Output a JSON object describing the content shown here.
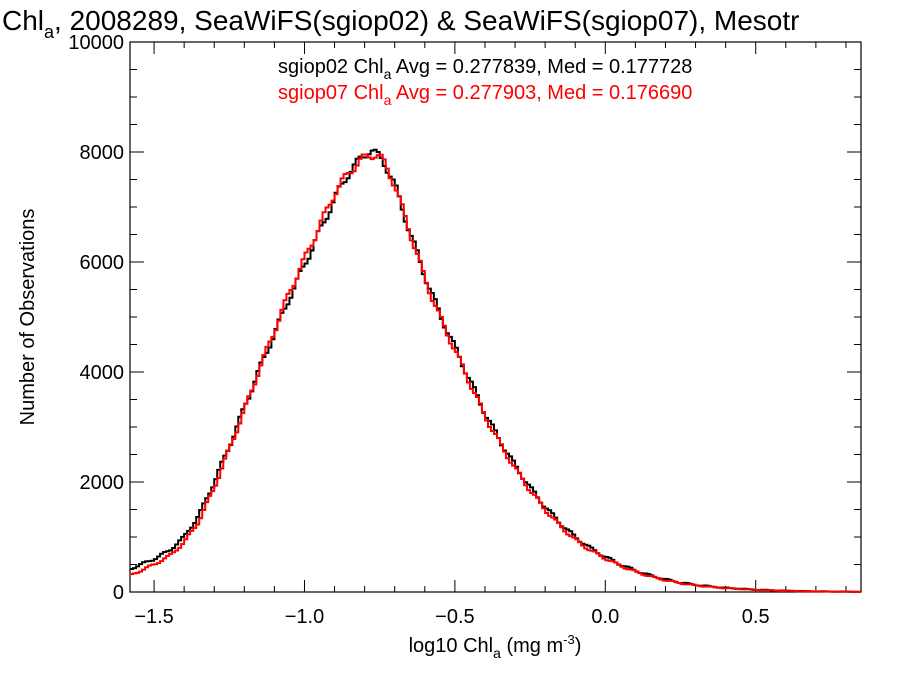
{
  "chart_data": {
    "type": "line",
    "title_main": "Chl",
    "title_sub": "a",
    "title_rest": ", 2008289, SeaWiFS(sgiop02) & SeaWiFS(sgiop07), Mesotr",
    "xlabel_pre": "log10 Chl",
    "xlabel_sub": "a",
    "xlabel_unit": " (mg m",
    "xlabel_sup": "-3",
    "xlabel_close": ")",
    "ylabel": "Number of Observations",
    "xlim": [
      -1.58,
      0.85
    ],
    "ylim": [
      0,
      10000
    ],
    "x_ticks": [
      -1.5,
      -1.0,
      -0.5,
      0.0,
      0.5
    ],
    "x_tick_labels": [
      "−1.5",
      "−1.0",
      "−0.5",
      "0.0",
      "0.5"
    ],
    "y_ticks": [
      0,
      2000,
      4000,
      6000,
      8000,
      10000
    ],
    "y_tick_labels": [
      "0",
      "2000",
      "4000",
      "6000",
      "8000",
      "10000"
    ],
    "grid": false,
    "legend_position": "top-right",
    "bin_width": 0.01,
    "series": [
      {
        "name_pre": "sgiop02 Chl",
        "name_sub": "a",
        "name_post": " Avg = 0.277839, Med = 0.177728",
        "color": "#000000",
        "x": [
          -1.58,
          -1.5,
          -1.45,
          -1.4,
          -1.35,
          -1.3,
          -1.25,
          -1.2,
          -1.15,
          -1.1,
          -1.05,
          -1.0,
          -0.95,
          -0.9,
          -0.85,
          -0.8,
          -0.78,
          -0.76,
          -0.74,
          -0.72,
          -0.7,
          -0.65,
          -0.6,
          -0.55,
          -0.5,
          -0.45,
          -0.4,
          -0.35,
          -0.3,
          -0.25,
          -0.2,
          -0.15,
          -0.1,
          -0.05,
          0.0,
          0.05,
          0.1,
          0.15,
          0.2,
          0.25,
          0.3,
          0.35,
          0.4,
          0.5,
          0.6,
          0.7,
          0.8,
          0.85
        ],
        "y": [
          420,
          600,
          750,
          1000,
          1400,
          2000,
          2650,
          3350,
          4050,
          4700,
          5350,
          5950,
          6550,
          7150,
          7650,
          7950,
          8050,
          7950,
          7850,
          7650,
          7400,
          6550,
          5750,
          5050,
          4450,
          3850,
          3250,
          2750,
          2300,
          1900,
          1550,
          1250,
          1000,
          800,
          640,
          500,
          390,
          300,
          230,
          170,
          130,
          100,
          75,
          42,
          22,
          12,
          6,
          4
        ]
      },
      {
        "name_pre": "sgiop07 Chl",
        "name_sub": "a",
        "name_post": " Avg = 0.277903, Med = 0.176690",
        "color": "#ff0000",
        "x": [
          -1.58,
          -1.5,
          -1.45,
          -1.4,
          -1.35,
          -1.3,
          -1.25,
          -1.2,
          -1.15,
          -1.1,
          -1.05,
          -1.0,
          -0.95,
          -0.9,
          -0.85,
          -0.8,
          -0.78,
          -0.76,
          -0.74,
          -0.72,
          -0.7,
          -0.65,
          -0.6,
          -0.55,
          -0.5,
          -0.45,
          -0.4,
          -0.35,
          -0.3,
          -0.25,
          -0.2,
          -0.15,
          -0.1,
          -0.05,
          0.0,
          0.05,
          0.1,
          0.15,
          0.2,
          0.25,
          0.3,
          0.35,
          0.4,
          0.5,
          0.6,
          0.7,
          0.8,
          0.85
        ],
        "y": [
          300,
          500,
          650,
          900,
          1300,
          1900,
          2600,
          3300,
          4050,
          4750,
          5450,
          6050,
          6650,
          7250,
          7650,
          7900,
          7950,
          7950,
          7850,
          7650,
          7400,
          6550,
          5700,
          5000,
          4400,
          3800,
          3200,
          2700,
          2250,
          1850,
          1500,
          1200,
          950,
          760,
          610,
          480,
          370,
          285,
          215,
          160,
          120,
          95,
          70,
          40,
          20,
          10,
          5,
          3
        ]
      }
    ]
  }
}
